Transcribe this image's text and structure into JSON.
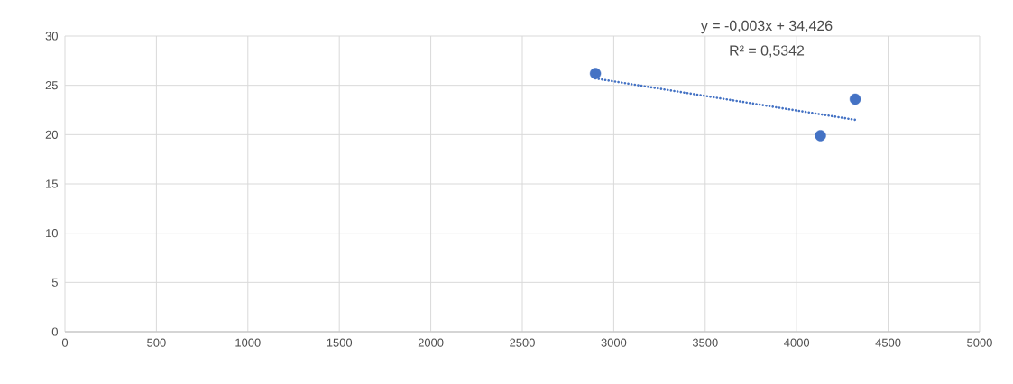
{
  "chart_data": {
    "type": "scatter",
    "grid": true,
    "annotations": [
      "y = -0,003x + 34,426",
      "R² = 0,5342"
    ],
    "series": [
      {
        "marker": "circle",
        "color": "#4472c4",
        "x": [
          2900,
          4130,
          4320
        ],
        "values": [
          26.2,
          19.9,
          23.6
        ]
      },
      {
        "type": "line",
        "marker": "none",
        "line_style": "dotted",
        "color": "#4472c4",
        "x": [
          2900,
          4320
        ],
        "values": [
          25.7,
          21.5
        ]
      }
    ],
    "xlim": [
      0,
      5000
    ],
    "xticks": [
      0,
      500,
      1000,
      1500,
      2000,
      2500,
      3000,
      3500,
      4000,
      4500,
      5000
    ],
    "ylim": [
      0,
      30
    ],
    "yticks": [
      0,
      5,
      10,
      15,
      20,
      25,
      30
    ]
  }
}
